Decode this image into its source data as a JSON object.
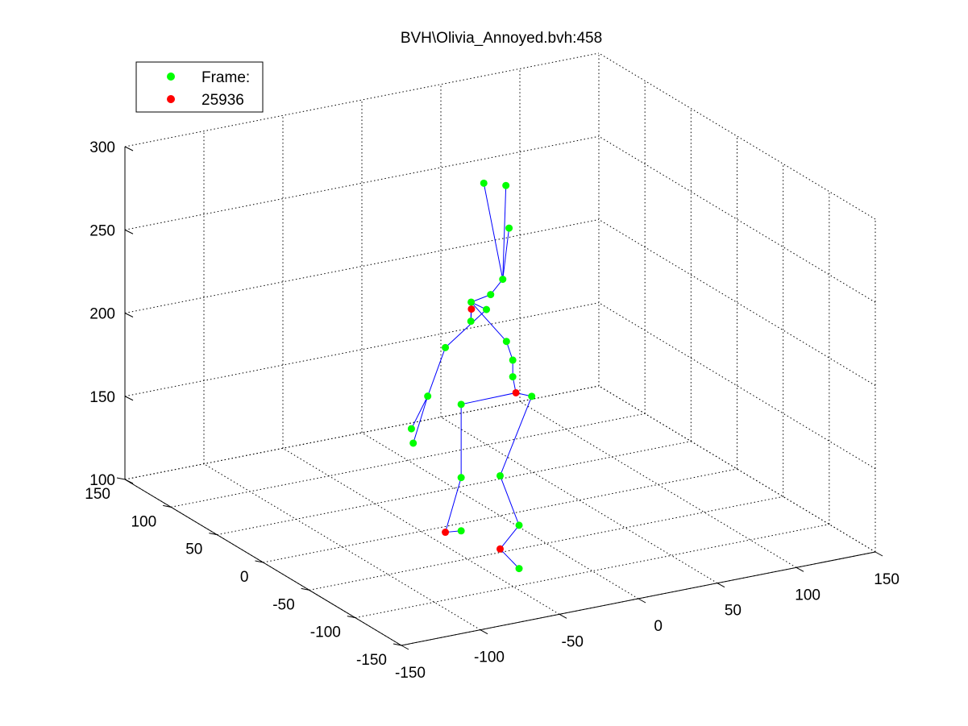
{
  "chart_data": {
    "type": "scatter",
    "title": "BVH\\Olivia_Annoyed.bvh:458",
    "xlabel": "",
    "ylabel": "",
    "zlabel": "",
    "xlim": [
      -150,
      150
    ],
    "ylim": [
      -150,
      150
    ],
    "zlim": [
      100,
      300
    ],
    "x_ticks": [
      "-150",
      "-100",
      "-50",
      "0",
      "50",
      "100",
      "150"
    ],
    "y_ticks": [
      "-150",
      "-100",
      "-50",
      "0",
      "50",
      "100",
      "150"
    ],
    "z_ticks": [
      "100",
      "150",
      "200",
      "250",
      "300"
    ],
    "grid": true,
    "legend_position": "top-left",
    "colors": {
      "joint": "#00ff00",
      "marker": "#ff0000",
      "bone": "#0000ff",
      "grid": "#000000"
    },
    "series": [
      {
        "name": "Frame:",
        "color": "#00ff00",
        "points": [
          [
            -8,
            4,
            300
          ],
          [
            6,
            4,
            296
          ],
          [
            8,
            4,
            270
          ],
          [
            4,
            4,
            240
          ],
          [
            -6,
            0,
            234
          ],
          [
            -16,
            4,
            230
          ],
          [
            -22,
            -6,
            223
          ],
          [
            -4,
            8,
            222
          ],
          [
            4,
            0,
            204
          ],
          [
            8,
            0,
            192
          ],
          [
            8,
            0,
            182
          ],
          [
            -20,
            8,
            168
          ],
          [
            20,
            0,
            168
          ],
          [
            -20,
            8,
            124
          ],
          [
            0,
            0,
            124
          ],
          [
            -20,
            8,
            92
          ],
          [
            12,
            0,
            92
          ],
          [
            12,
            0,
            66
          ],
          [
            -30,
            8,
            204
          ],
          [
            -40,
            10,
            176
          ],
          [
            -34,
            38,
            146
          ],
          [
            -34,
            36,
            138
          ]
        ]
      },
      {
        "name": "25936",
        "color": "#ff0000",
        "points": [
          [
            -24,
            -10,
            232
          ],
          [
            10,
            0,
            172
          ],
          [
            -30,
            8,
            93
          ],
          [
            0,
            0,
            80
          ]
        ]
      }
    ]
  },
  "legend": {
    "items": [
      {
        "label": "Frame:",
        "color": "#00ff00"
      },
      {
        "label": "25936",
        "color": "#ff0000"
      }
    ]
  }
}
